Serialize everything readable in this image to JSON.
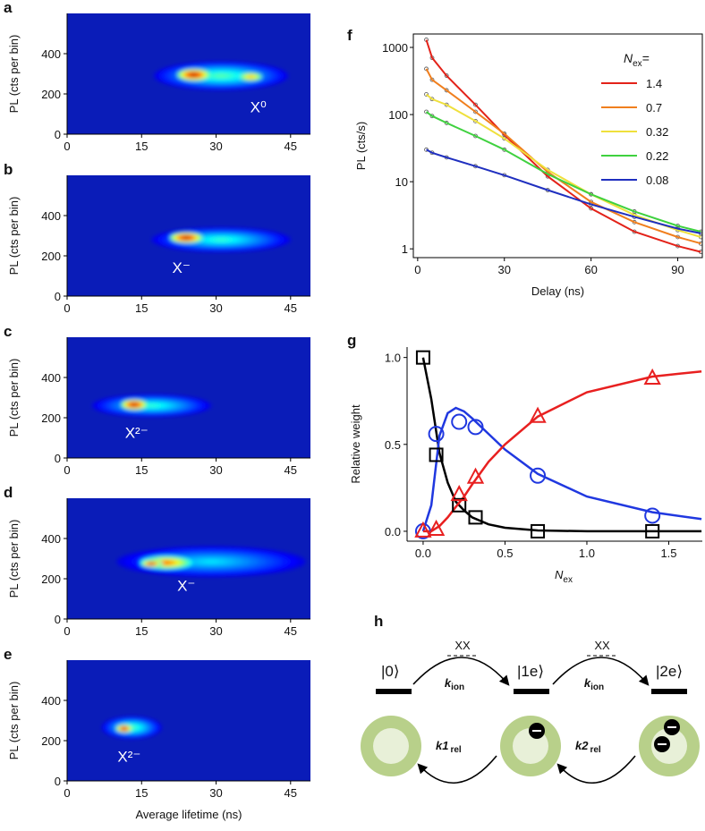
{
  "chart_data": [
    {
      "type": "heatmap",
      "panel": "a",
      "ylabel": "PL (cts per bin)",
      "xlim": [
        0,
        49
      ],
      "ylim": [
        0,
        600
      ],
      "xticks": [
        0,
        15,
        30,
        45
      ],
      "yticks": [
        0,
        200,
        400
      ],
      "background": "#0a1cb8",
      "blobs": [
        {
          "x": 31,
          "y": 290,
          "rx": 13.5,
          "ry": 70,
          "peak": 0.42
        },
        {
          "x": 25.5,
          "y": 295,
          "rx": 5,
          "ry": 45,
          "peak": 1.0
        },
        {
          "x": 37,
          "y": 285,
          "rx": 4.5,
          "ry": 40,
          "peak": 0.7
        }
      ],
      "label": "X⁰"
    },
    {
      "type": "heatmap",
      "panel": "b",
      "ylabel": "PL (cts per bin)",
      "xlim": [
        0,
        49
      ],
      "ylim": [
        0,
        600
      ],
      "xticks": [
        0,
        15,
        30,
        45
      ],
      "yticks": [
        0,
        200,
        400
      ],
      "background": "#0a1cb8",
      "blobs": [
        {
          "x": 31,
          "y": 280,
          "rx": 14,
          "ry": 60,
          "peak": 0.38
        },
        {
          "x": 24,
          "y": 290,
          "rx": 5,
          "ry": 40,
          "peak": 1.0
        }
      ],
      "label": "X⁻"
    },
    {
      "type": "heatmap",
      "panel": "c",
      "ylabel": "PL (cts per bin)",
      "xlim": [
        0,
        49
      ],
      "ylim": [
        0,
        600
      ],
      "xticks": [
        0,
        15,
        30,
        45
      ],
      "yticks": [
        0,
        200,
        400
      ],
      "background": "#0a1cb8",
      "blobs": [
        {
          "x": 17,
          "y": 260,
          "rx": 12,
          "ry": 55,
          "peak": 0.38
        },
        {
          "x": 13.5,
          "y": 265,
          "rx": 4,
          "ry": 40,
          "peak": 1.0
        }
      ],
      "label": "X²⁻"
    },
    {
      "type": "heatmap",
      "panel": "d",
      "ylabel": "PL (cts per bin)",
      "xlim": [
        0,
        49
      ],
      "ylim": [
        0,
        600
      ],
      "xticks": [
        0,
        15,
        30,
        45
      ],
      "yticks": [
        0,
        200,
        400
      ],
      "background": "#0a1cb8",
      "blobs": [
        {
          "x": 29,
          "y": 285,
          "rx": 19,
          "ry": 75,
          "peak": 0.3
        },
        {
          "x": 20,
          "y": 280,
          "rx": 8,
          "ry": 50,
          "peak": 0.8
        },
        {
          "x": 17,
          "y": 275,
          "rx": 3,
          "ry": 25,
          "peak": 1.0
        }
      ],
      "label": "X⁻"
    },
    {
      "type": "heatmap",
      "panel": "e",
      "ylabel": "PL (cts per bin)",
      "xlabel": "Average lifetime (ns)",
      "xlim": [
        0,
        49
      ],
      "ylim": [
        0,
        600
      ],
      "xticks": [
        0,
        15,
        30,
        45
      ],
      "yticks": [
        0,
        200,
        400
      ],
      "background": "#0a1cb8",
      "blobs": [
        {
          "x": 13,
          "y": 265,
          "rx": 6,
          "ry": 55,
          "peak": 0.42
        },
        {
          "x": 11.5,
          "y": 260,
          "rx": 2.5,
          "ry": 30,
          "peak": 1.0
        }
      ],
      "label": "X²⁻"
    },
    {
      "type": "line",
      "panel": "f",
      "ylabel": "PL (cts/s)",
      "xlabel": "Delay (ns)",
      "log_y": true,
      "xlim": [
        -1.5,
        98.5
      ],
      "ylim": [
        0.74,
        1585
      ],
      "xticks": [
        0,
        30,
        60,
        90
      ],
      "yticks": [
        1,
        10,
        100,
        1000
      ],
      "legend_title": {
        "main": "N",
        "sub": "ex",
        "tail": "="
      },
      "x": [
        3,
        5,
        10,
        20,
        30,
        45,
        60,
        75,
        90,
        98
      ],
      "series": [
        {
          "name": "1.4",
          "color": "#e32219",
          "values": [
            1300,
            700,
            380,
            140,
            50,
            12,
            4,
            1.8,
            1.1,
            0.9
          ]
        },
        {
          "name": "0.7",
          "color": "#f07f1e",
          "values": [
            480,
            330,
            230,
            110,
            52,
            14,
            5,
            2.5,
            1.5,
            1.2
          ]
        },
        {
          "name": "0.32",
          "color": "#efe03c",
          "values": [
            200,
            170,
            140,
            80,
            44,
            15,
            6.5,
            3.2,
            1.9,
            1.5
          ]
        },
        {
          "name": "0.22",
          "color": "#3fd13f",
          "values": [
            110,
            95,
            75,
            48,
            30,
            13,
            6.5,
            3.6,
            2.2,
            1.8
          ]
        },
        {
          "name": "0.08",
          "color": "#1f2fbf",
          "values": [
            30,
            27,
            23,
            17,
            12.5,
            7.5,
            4.6,
            3.0,
            2.0,
            1.7
          ]
        }
      ]
    },
    {
      "type": "scatter",
      "panel": "g",
      "ylabel": "Relative weight",
      "xlabel": {
        "main": "N",
        "sub": "ex"
      },
      "xlim": [
        -0.098,
        1.705
      ],
      "ylim": [
        -0.057,
        1.06
      ],
      "xticks": [
        {
          "value": 0,
          "label": "0.0"
        },
        {
          "value": 0.5,
          "label": "0.5"
        },
        {
          "value": 1,
          "label": "1.0"
        },
        {
          "value": 1.5,
          "label": "1.5"
        }
      ],
      "yticks": [
        {
          "value": 0,
          "label": "0.0"
        },
        {
          "value": 0.5,
          "label": "0.5"
        },
        {
          "value": 1,
          "label": "1.0"
        }
      ],
      "x": [
        0,
        0.08,
        0.22,
        0.32,
        0.7,
        1.4
      ],
      "fit_x": [
        0,
        0.05,
        0.1,
        0.15,
        0.2,
        0.25,
        0.3,
        0.4,
        0.5,
        0.7,
        1.0,
        1.4,
        1.7
      ],
      "series": [
        {
          "color": "#000000",
          "marker": "square",
          "values": [
            1.0,
            0.44,
            0.15,
            0.08,
            0.0,
            0.0
          ],
          "fit_values": [
            1,
            0.76,
            0.45,
            0.28,
            0.17,
            0.12,
            0.08,
            0.04,
            0.02,
            0.005,
            0,
            0,
            0
          ]
        },
        {
          "color": "#2038e0",
          "marker": "circle",
          "values": [
            0,
            0.56,
            0.63,
            0.6,
            0.32,
            0.09
          ],
          "fit_values": [
            0,
            0.15,
            0.55,
            0.68,
            0.71,
            0.69,
            0.65,
            0.56,
            0.47,
            0.33,
            0.2,
            0.11,
            0.07
          ]
        },
        {
          "color": "#e82020",
          "marker": "triangle",
          "values": [
            0,
            0.01,
            0.21,
            0.31,
            0.66,
            0.88
          ],
          "fit_values": [
            0,
            0,
            0.03,
            0.08,
            0.14,
            0.2,
            0.27,
            0.4,
            0.5,
            0.66,
            0.8,
            0.89,
            0.92
          ]
        }
      ]
    }
  ],
  "diagram": {
    "panel": "h",
    "states": [
      "|0⟩",
      "|1e⟩",
      "|2e⟩"
    ],
    "xx": [
      "XX",
      "XX"
    ],
    "forward": [
      {
        "k": "k",
        "sub": "ion"
      },
      {
        "k": "k",
        "sub": "ion"
      }
    ],
    "back": [
      {
        "k": "k1",
        "sub": "rel"
      },
      {
        "k": "k2",
        "sub": "rel"
      }
    ]
  }
}
